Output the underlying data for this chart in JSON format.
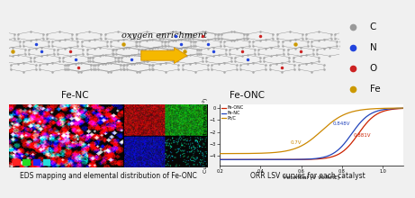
{
  "arrow_text": "oxygen enrichment",
  "label_fenc": "Fe-NC",
  "label_feonc": "Fe-ONC",
  "legend_items": [
    "C",
    "N",
    "O",
    "Fe"
  ],
  "legend_colors": [
    "#999999",
    "#2244dd",
    "#cc2222",
    "#cc9900"
  ],
  "eds_caption": "EDS mapping and elemental distribution of Fe-ONC",
  "orr_caption": "ORR LSV curves for each catalyst",
  "orr_xlabel": "Potential (V vs.RHE)",
  "orr_ylabel": "Current density (mA cm⁻²)",
  "orr_xlim": [
    0.2,
    1.1
  ],
  "orr_ylim": [
    -4.8,
    0.3
  ],
  "orr_lines": [
    {
      "label": "Fe-ONC",
      "color": "#cc2200",
      "e_half": 0.881,
      "k": 22,
      "ymin": -4.3,
      "ymax": 0.0
    },
    {
      "label": "Fe-NC",
      "color": "#2244bb",
      "e_half": 0.848,
      "k": 22,
      "ymin": -4.3,
      "ymax": 0.0
    },
    {
      "label": "Pt/C",
      "color": "#cc8800",
      "e_half": 0.7,
      "k": 16,
      "ymin": -3.8,
      "ymax": 0.0
    }
  ],
  "annotation_feonc": "0.881V",
  "annotation_fenc": "0.848V",
  "annotation_ptc": "0.7V",
  "bg_color": "#f0f0f0"
}
